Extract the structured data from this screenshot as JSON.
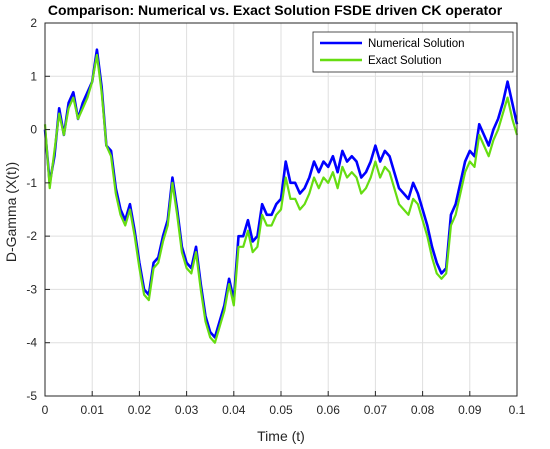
{
  "chart_data": {
    "type": "line",
    "title": "Comparison: Numerical vs. Exact Solution FSDE driven CK operator",
    "xlabel": "Time (t)",
    "ylabel": "D-Gamma (X(t))",
    "xlim": [
      0,
      0.1
    ],
    "ylim": [
      -5,
      2
    ],
    "xticks": [
      "0",
      "0.01",
      "0.02",
      "0.03",
      "0.04",
      "0.05",
      "0.06",
      "0.07",
      "0.08",
      "0.09",
      "0.1"
    ],
    "yticks": [
      "2",
      "1",
      "0",
      "-1",
      "-2",
      "-3",
      "-4",
      "-5"
    ],
    "grid": true,
    "legend_position": "top-right",
    "series": [
      {
        "name": "Numerical Solution",
        "color": "#0000ff",
        "x": [
          0,
          0.001,
          0.002,
          0.003,
          0.004,
          0.005,
          0.006,
          0.007,
          0.008,
          0.009,
          0.01,
          0.011,
          0.012,
          0.013,
          0.014,
          0.015,
          0.016,
          0.017,
          0.018,
          0.019,
          0.02,
          0.021,
          0.022,
          0.023,
          0.024,
          0.025,
          0.026,
          0.027,
          0.028,
          0.029,
          0.03,
          0.031,
          0.032,
          0.033,
          0.034,
          0.035,
          0.036,
          0.037,
          0.038,
          0.039,
          0.04,
          0.041,
          0.042,
          0.043,
          0.044,
          0.045,
          0.046,
          0.047,
          0.048,
          0.049,
          0.05,
          0.051,
          0.052,
          0.053,
          0.054,
          0.055,
          0.056,
          0.057,
          0.058,
          0.059,
          0.06,
          0.061,
          0.062,
          0.063,
          0.064,
          0.065,
          0.066,
          0.067,
          0.068,
          0.069,
          0.07,
          0.071,
          0.072,
          0.073,
          0.074,
          0.075,
          0.076,
          0.077,
          0.078,
          0.079,
          0.08,
          0.081,
          0.082,
          0.083,
          0.084,
          0.085,
          0.086,
          0.087,
          0.088,
          0.089,
          0.09,
          0.091,
          0.092,
          0.093,
          0.094,
          0.095,
          0.096,
          0.097,
          0.098,
          0.099,
          0.1
        ],
        "y": [
          0.0,
          -1.0,
          -0.5,
          0.4,
          -0.1,
          0.5,
          0.7,
          0.2,
          0.5,
          0.7,
          0.9,
          1.5,
          0.8,
          -0.3,
          -0.4,
          -1.1,
          -1.5,
          -1.7,
          -1.4,
          -1.9,
          -2.5,
          -3.0,
          -3.1,
          -2.5,
          -2.4,
          -2.0,
          -1.7,
          -0.9,
          -1.5,
          -2.2,
          -2.5,
          -2.6,
          -2.2,
          -2.9,
          -3.5,
          -3.8,
          -3.9,
          -3.6,
          -3.3,
          -2.8,
          -3.2,
          -2.0,
          -2.0,
          -1.7,
          -2.1,
          -2.0,
          -1.4,
          -1.6,
          -1.6,
          -1.4,
          -1.3,
          -0.6,
          -1.0,
          -1.0,
          -1.2,
          -1.1,
          -0.9,
          -0.6,
          -0.8,
          -0.6,
          -0.7,
          -0.5,
          -0.8,
          -0.4,
          -0.6,
          -0.5,
          -0.6,
          -0.9,
          -0.8,
          -0.6,
          -0.3,
          -0.6,
          -0.4,
          -0.5,
          -0.8,
          -1.1,
          -1.2,
          -1.3,
          -1.0,
          -1.2,
          -1.5,
          -1.8,
          -2.2,
          -2.5,
          -2.7,
          -2.6,
          -1.6,
          -1.4,
          -1.0,
          -0.6,
          -0.4,
          -0.5,
          0.1,
          -0.1,
          -0.3,
          0.0,
          0.2,
          0.5,
          0.9,
          0.5,
          0.1
        ]
      },
      {
        "name": "Exact Solution",
        "color": "#66dd11",
        "x": [
          0,
          0.001,
          0.002,
          0.003,
          0.004,
          0.005,
          0.006,
          0.007,
          0.008,
          0.009,
          0.01,
          0.011,
          0.012,
          0.013,
          0.014,
          0.015,
          0.016,
          0.017,
          0.018,
          0.019,
          0.02,
          0.021,
          0.022,
          0.023,
          0.024,
          0.025,
          0.026,
          0.027,
          0.028,
          0.029,
          0.03,
          0.031,
          0.032,
          0.033,
          0.034,
          0.035,
          0.036,
          0.037,
          0.038,
          0.039,
          0.04,
          0.041,
          0.042,
          0.043,
          0.044,
          0.045,
          0.046,
          0.047,
          0.048,
          0.049,
          0.05,
          0.051,
          0.052,
          0.053,
          0.054,
          0.055,
          0.056,
          0.057,
          0.058,
          0.059,
          0.06,
          0.061,
          0.062,
          0.063,
          0.064,
          0.065,
          0.066,
          0.067,
          0.068,
          0.069,
          0.07,
          0.071,
          0.072,
          0.073,
          0.074,
          0.075,
          0.076,
          0.077,
          0.078,
          0.079,
          0.08,
          0.081,
          0.082,
          0.083,
          0.084,
          0.085,
          0.086,
          0.087,
          0.088,
          0.089,
          0.09,
          0.091,
          0.092,
          0.093,
          0.094,
          0.095,
          0.096,
          0.097,
          0.098,
          0.099,
          0.1
        ],
        "y": [
          0.1,
          -1.1,
          -0.4,
          0.3,
          -0.1,
          0.4,
          0.6,
          0.2,
          0.4,
          0.6,
          0.9,
          1.4,
          0.7,
          -0.3,
          -0.5,
          -1.2,
          -1.6,
          -1.8,
          -1.5,
          -2.0,
          -2.6,
          -3.1,
          -3.2,
          -2.6,
          -2.5,
          -2.1,
          -1.8,
          -1.0,
          -1.6,
          -2.3,
          -2.6,
          -2.7,
          -2.3,
          -3.0,
          -3.6,
          -3.9,
          -4.0,
          -3.7,
          -3.4,
          -2.9,
          -3.3,
          -2.2,
          -2.2,
          -1.9,
          -2.3,
          -2.2,
          -1.6,
          -1.8,
          -1.8,
          -1.6,
          -1.5,
          -0.9,
          -1.3,
          -1.3,
          -1.5,
          -1.4,
          -1.2,
          -0.9,
          -1.1,
          -0.9,
          -1.0,
          -0.8,
          -1.1,
          -0.7,
          -0.9,
          -0.8,
          -0.9,
          -1.2,
          -1.1,
          -0.9,
          -0.6,
          -0.9,
          -0.7,
          -0.8,
          -1.1,
          -1.4,
          -1.5,
          -1.6,
          -1.3,
          -1.4,
          -1.7,
          -2.0,
          -2.4,
          -2.7,
          -2.8,
          -2.7,
          -1.8,
          -1.6,
          -1.2,
          -0.8,
          -0.6,
          -0.7,
          -0.1,
          -0.3,
          -0.5,
          -0.2,
          0.0,
          0.3,
          0.6,
          0.2,
          -0.1
        ]
      }
    ]
  }
}
